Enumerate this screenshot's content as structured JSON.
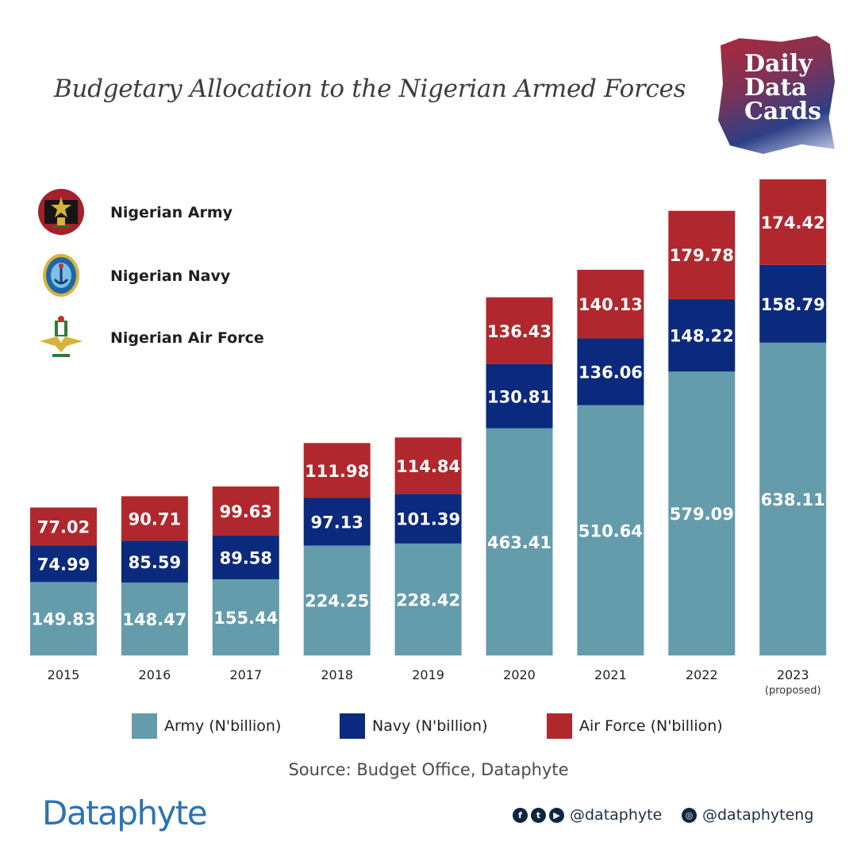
{
  "title": "Budgetary Allocation to the Nigerian Armed Forces",
  "badge": {
    "line1": "Daily",
    "line2": "Data",
    "line3": "Cards"
  },
  "service_legend": [
    {
      "label": "Nigerian Army",
      "icon": "army-crest-icon"
    },
    {
      "label": "Nigerian Navy",
      "icon": "navy-crest-icon"
    },
    {
      "label": "Nigerian Air Force",
      "icon": "airforce-crest-icon"
    }
  ],
  "colors": {
    "army": "#649cac",
    "navy": "#0b2a7e",
    "air_force": "#b0282d"
  },
  "chart_data": {
    "type": "bar",
    "stacked": true,
    "title": "Budgetary Allocation to the Nigerian Armed Forces",
    "categories": [
      "2015",
      "2016",
      "2017",
      "2018",
      "2019",
      "2020",
      "2021",
      "2022",
      "2023"
    ],
    "category_notes": [
      "",
      "",
      "",
      "",
      "",
      "",
      "",
      "",
      "(proposed)"
    ],
    "series": [
      {
        "name": "Army (N'billion)",
        "color": "#649cac",
        "values": [
          149.83,
          148.47,
          155.44,
          224.25,
          228.42,
          463.41,
          510.64,
          579.09,
          638.11
        ]
      },
      {
        "name": "Navy (N'billion)",
        "color": "#0b2a7e",
        "values": [
          74.99,
          85.59,
          89.58,
          97.13,
          101.39,
          130.81,
          136.06,
          148.22,
          158.79
        ]
      },
      {
        "name": "Air Force (N'billion)",
        "color": "#b0282d",
        "values": [
          77.02,
          90.71,
          99.63,
          111.98,
          114.84,
          136.43,
          140.13,
          179.78,
          174.42
        ]
      }
    ],
    "ylim": [
      0,
      1000
    ],
    "grid": false,
    "legend_position": "bottom"
  },
  "source": "Source: Budget Office, Dataphyte",
  "brand": "Dataphyte",
  "social": [
    {
      "icons": [
        "facebook-icon",
        "twitter-icon",
        "youtube-icon"
      ],
      "glyphs": [
        "f",
        "t",
        "▶"
      ],
      "handle": "@dataphyte"
    },
    {
      "icons": [
        "instagram-icon"
      ],
      "glyphs": [
        "◎"
      ],
      "handle": "@dataphyteng"
    }
  ]
}
